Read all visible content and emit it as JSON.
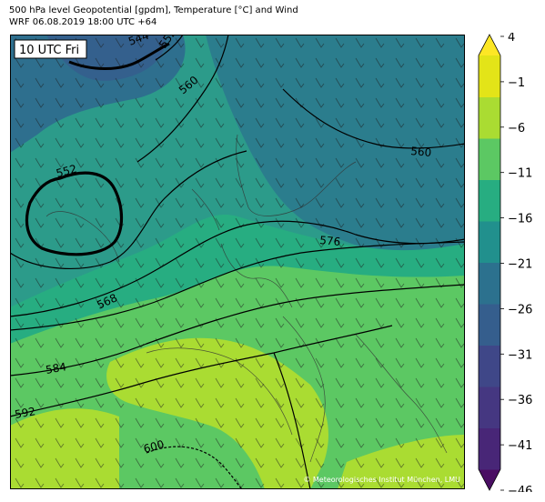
{
  "header": {
    "title_line1": "500 hPa level Geopotential [gpdm], Temperature [°C] and Wind",
    "title_line2": "WRF 06.08.2019 18:00 UTC +64"
  },
  "map": {
    "time_label": "10 UTC Fri",
    "copyright": "© Meteorologisches Institut München, LMU",
    "contour_labels": [
      "544",
      "552",
      "560",
      "552",
      "560",
      "568",
      "576",
      "584",
      "592",
      "600"
    ]
  },
  "colorbar": {
    "ticks": [
      "4",
      "−1",
      "−6",
      "−11",
      "−16",
      "−21",
      "−26",
      "−31",
      "−36",
      "−41",
      "−46"
    ],
    "colors": [
      "#4a0e63",
      "#482677",
      "#453781",
      "#3f4788",
      "#355e8d",
      "#2c718e",
      "#21908d",
      "#27ad81",
      "#5cc863",
      "#aadc32",
      "#e3e418",
      "#fde725"
    ]
  }
}
